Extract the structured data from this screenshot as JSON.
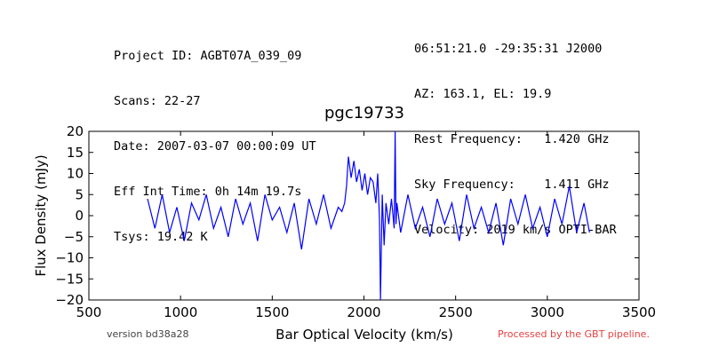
{
  "header": {
    "left_lines": [
      "Project ID: AGBT07A_039_09",
      "Scans: 22-27",
      "Date: 2007-03-07 00:00:09 UT",
      "Eff Int Time: 0h 14m 19.7s",
      "Tsys: 19.42 K"
    ],
    "right_lines": [
      "06:51:21.0 -29:35:31 J2000",
      "AZ: 163.1, EL: 19.9",
      "Rest Frequency:   1.420 GHz",
      "Sky Frequency:    1.411 GHz",
      "Velocity: 2019 km/s OPTI-BAR"
    ]
  },
  "footer": {
    "version": "version bd38a28",
    "processed": "Processed by the GBT pipeline.",
    "processed_color": "#e84040"
  },
  "chart_data": {
    "type": "line",
    "title": "pgc19733",
    "xlabel": "Bar Optical Velocity (km/s)",
    "ylabel": "Flux Density (mJy)",
    "xlim": [
      500,
      3500
    ],
    "ylim": [
      -20,
      20
    ],
    "xticks": [
      500,
      1000,
      1500,
      2000,
      2500,
      3000,
      3500
    ],
    "yticks": [
      -20,
      -15,
      -10,
      -5,
      0,
      5,
      10,
      15,
      20
    ],
    "grid": false,
    "line_color": "#0000ff",
    "series": [
      {
        "x": [
          820,
          860,
          900,
          940,
          980,
          1020,
          1060,
          1100,
          1140,
          1180,
          1220,
          1260,
          1300,
          1340,
          1380,
          1420,
          1460,
          1500,
          1540,
          1580,
          1620,
          1660,
          1700,
          1740,
          1780,
          1820,
          1860,
          1880,
          1895,
          1905,
          1915,
          1930,
          1945,
          1960,
          1975,
          1990,
          2005,
          2020,
          2035,
          2050,
          2065,
          2075,
          2085,
          2090,
          2100,
          2110,
          2120,
          2135,
          2150,
          2165,
          2170,
          2175,
          2180,
          2200,
          2240,
          2280,
          2320,
          2360,
          2400,
          2440,
          2480,
          2520,
          2560,
          2600,
          2640,
          2680,
          2720,
          2760,
          2800,
          2840,
          2880,
          2920,
          2960,
          3000,
          3040,
          3080,
          3120,
          3160,
          3200,
          3230
        ],
        "y": [
          4,
          -3,
          5,
          -4,
          2,
          -6,
          3,
          -1,
          5,
          -3,
          2,
          -5,
          4,
          -2,
          3,
          -6,
          5,
          -1,
          2,
          -4,
          3,
          -8,
          4,
          -2,
          5,
          -3,
          2,
          1,
          3,
          7,
          14,
          9,
          13,
          8,
          11,
          6,
          10,
          5,
          9,
          8,
          3,
          10,
          -1,
          -20,
          5,
          -7,
          3,
          -2,
          4,
          -3,
          20,
          -2,
          3,
          -4,
          5,
          -3,
          2,
          -5,
          4,
          -2,
          3,
          -6,
          5,
          -3,
          2,
          -4,
          3,
          -7,
          4,
          -2,
          5,
          -3,
          2,
          -5,
          4,
          -2,
          7,
          -4,
          3,
          -4
        ]
      }
    ]
  }
}
